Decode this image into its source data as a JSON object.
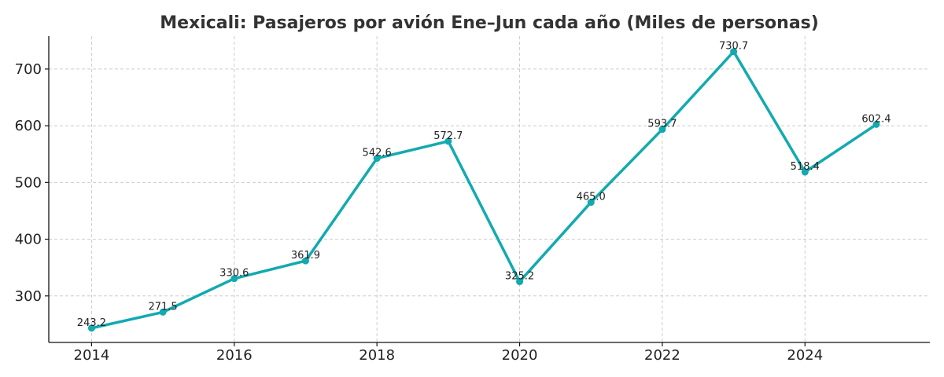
{
  "chart_data": {
    "type": "line",
    "title": "Mexicali: Pasajeros por avión Ene–Jun cada año (Miles de personas)",
    "xlabel": "",
    "ylabel": "",
    "x": [
      2014,
      2015,
      2016,
      2017,
      2018,
      2019,
      2020,
      2021,
      2022,
      2023,
      2024,
      2025
    ],
    "series": [
      {
        "values": [
          243.2,
          271.5,
          330.6,
          361.9,
          542.6,
          572.7,
          325.2,
          465.0,
          593.7,
          730.7,
          518.4,
          602.4
        ],
        "labels": [
          "243.2",
          "271.5",
          "330.6",
          "361.9",
          "542.6",
          "572.7",
          "325.2",
          "465.0",
          "593.7",
          "730.7",
          "518.4",
          "602.4"
        ],
        "color": "#12aab0"
      }
    ],
    "xticks": [
      2014,
      2016,
      2018,
      2020,
      2022,
      2024
    ],
    "xtick_labels": [
      "2014",
      "2016",
      "2018",
      "2020",
      "2022",
      "2024"
    ],
    "yticks": [
      300,
      400,
      500,
      600,
      700
    ],
    "ytick_labels": [
      "300",
      "400",
      "500",
      "600",
      "700"
    ],
    "xlim": [
      2013.4,
      2025.75
    ],
    "ylim": [
      218,
      758
    ],
    "grid": true,
    "legend": "none"
  }
}
